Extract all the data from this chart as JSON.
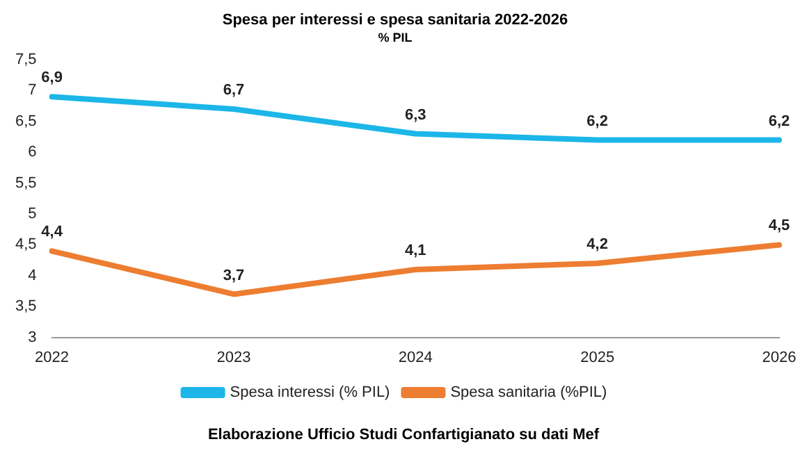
{
  "chart_data": {
    "type": "line",
    "title": "Spesa per interessi e spesa sanitaria 2022-2026",
    "subtitle": "% PIL",
    "categories": [
      "2022",
      "2023",
      "2024",
      "2025",
      "2026"
    ],
    "series": [
      {
        "name": "Spesa interessi (% PIL)",
        "color": "#1cb6e8",
        "values": [
          6.9,
          6.7,
          6.3,
          6.2,
          6.2
        ],
        "value_labels": [
          "6,9",
          "6,7",
          "6,3",
          "6,2",
          "6,2"
        ]
      },
      {
        "name": "Spesa sanitaria (%PIL)",
        "color": "#ed7d31",
        "values": [
          4.4,
          3.7,
          4.1,
          4.2,
          4.5
        ],
        "value_labels": [
          "4,4",
          "3,7",
          "4,1",
          "4,2",
          "4,5"
        ]
      }
    ],
    "ylim": [
      3,
      7.5
    ],
    "yticks": [
      3,
      {
        "value": 3.5,
        "label": "3,5"
      },
      4,
      {
        "value": 4.5,
        "label": "4,5"
      },
      5,
      {
        "value": 5.5,
        "label": "5,5"
      },
      6,
      {
        "value": 6.5,
        "label": "6,5"
      },
      7,
      {
        "value": 7.5,
        "label": "7,5"
      }
    ],
    "grid": false,
    "legend": "bottom",
    "marker": "none",
    "line_style": "solid",
    "annotations": [
      "Elaborazione Ufficio Studi Confartigianato su dati Mef"
    ]
  }
}
